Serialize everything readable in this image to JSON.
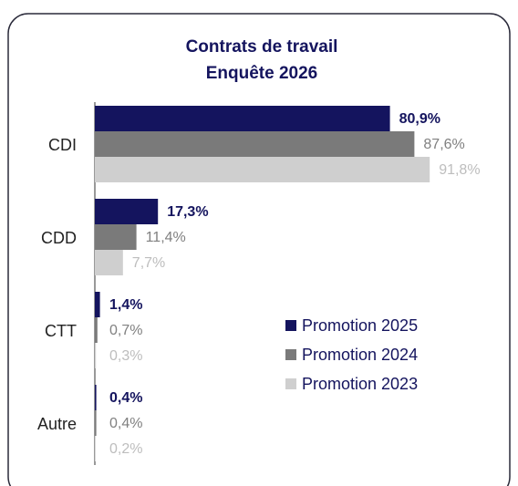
{
  "chart_data": {
    "type": "hbar",
    "title": [
      "Contrats de travail",
      "Enquête 2026"
    ],
    "categories": [
      "CDI",
      "CDD",
      "CTT",
      "Autre"
    ],
    "series": [
      {
        "name": "Promotion 2025",
        "color": "#14145e",
        "values": [
          80.9,
          17.3,
          1.4,
          0.4
        ],
        "value_labels": [
          "80,9%",
          "17,3%",
          "1,4%",
          "0,4%"
        ]
      },
      {
        "name": "Promotion 2024",
        "color": "#7a7a7a",
        "values": [
          87.6,
          11.4,
          0.7,
          0.4
        ],
        "value_labels": [
          "87,6%",
          "11,4%",
          "0,7%",
          "0,4%"
        ]
      },
      {
        "name": "Promotion 2023",
        "color": "#cfcfcf",
        "values": [
          91.8,
          7.7,
          0.3,
          0.2
        ],
        "value_labels": [
          "91,8%",
          "7,7%",
          "0,3%",
          "0,2%"
        ]
      }
    ],
    "xlim": [
      0,
      100
    ]
  }
}
